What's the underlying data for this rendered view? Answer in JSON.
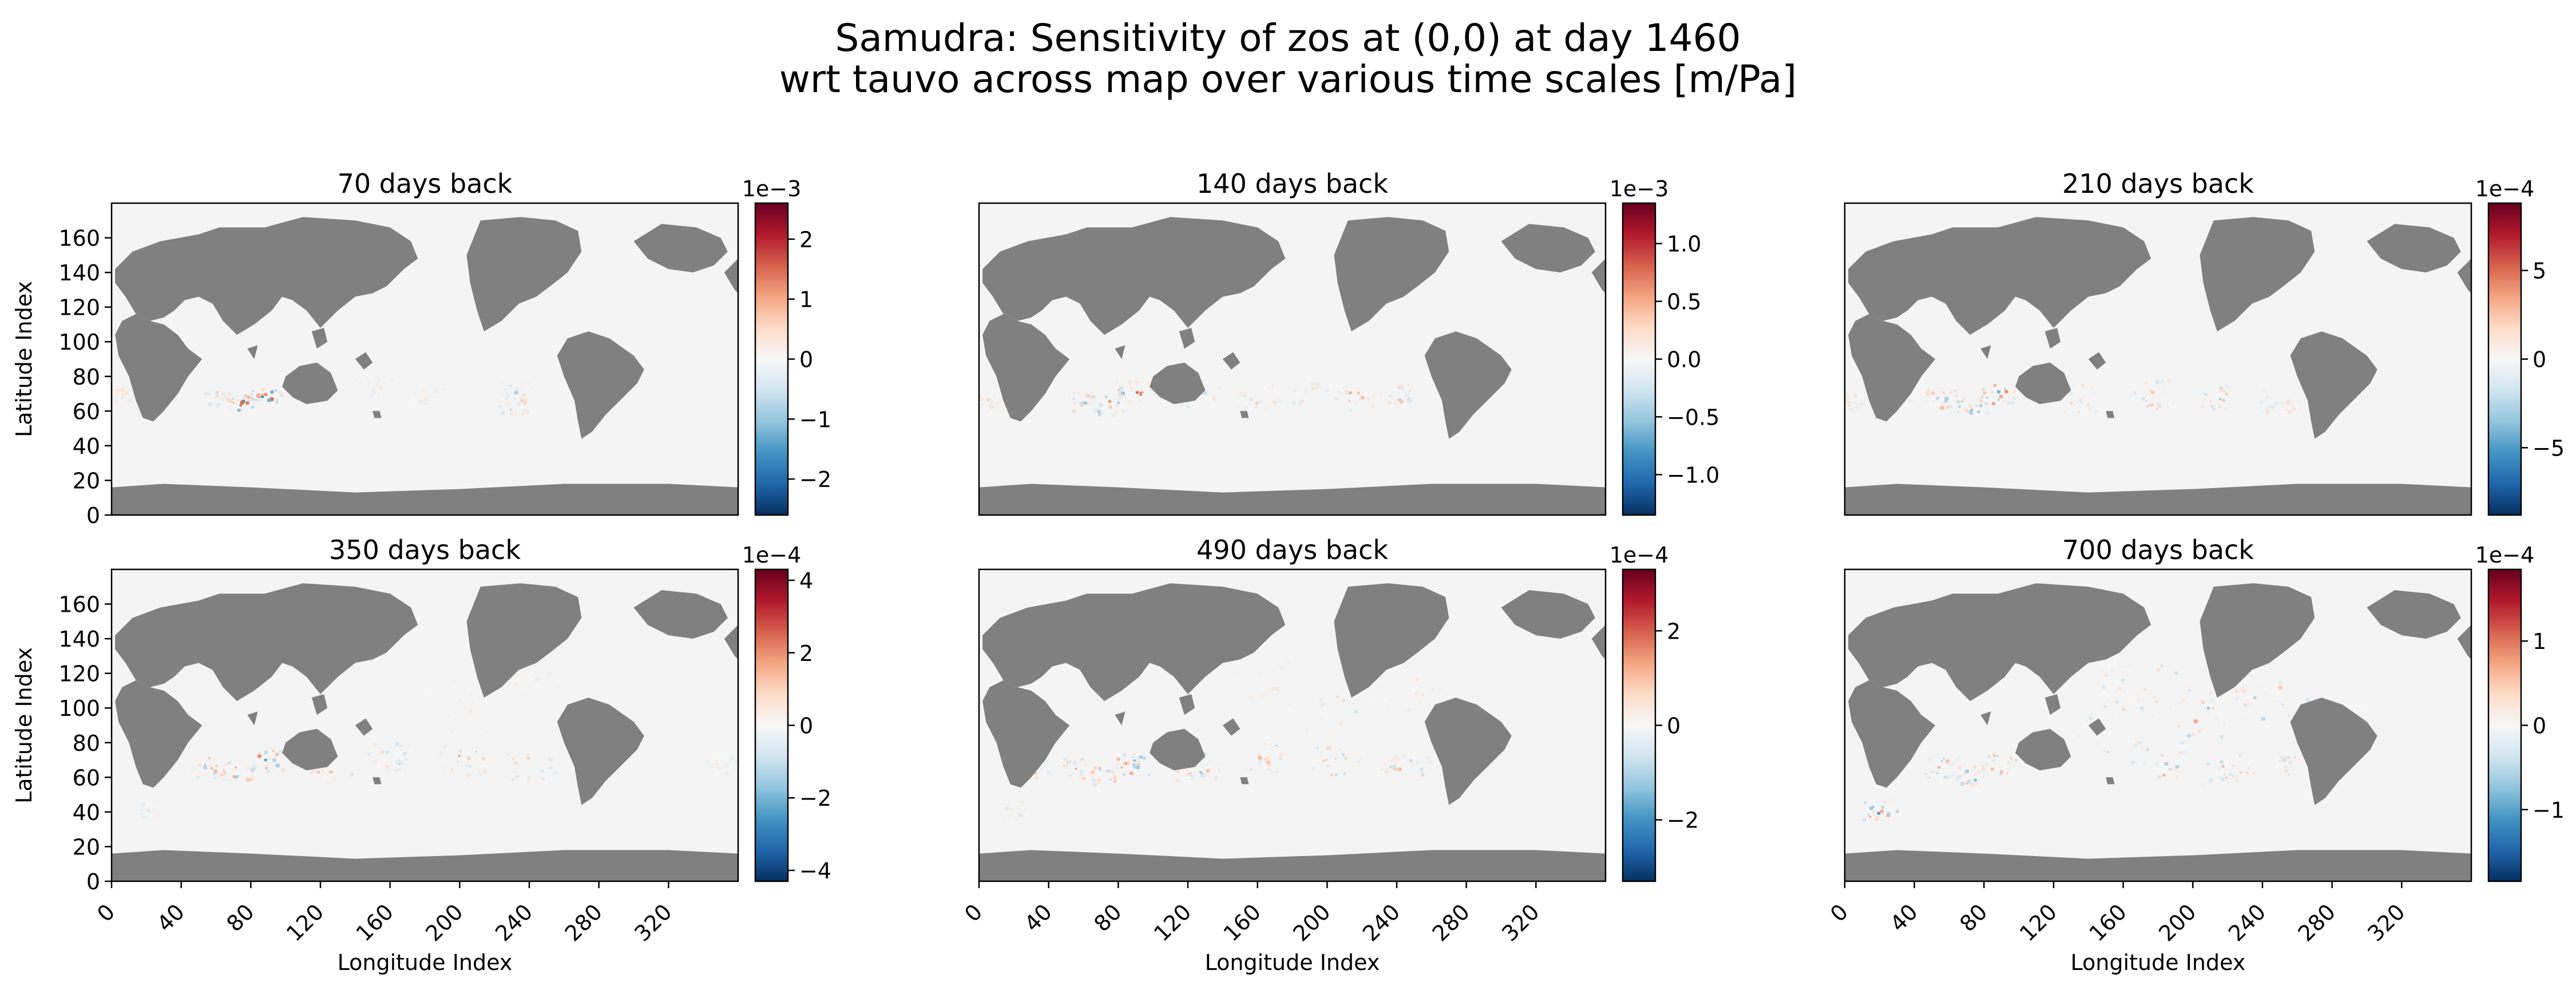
{
  "figure": {
    "title_line1": "Samudra: Sensitivity of zos at (0,0) at day 1460",
    "title_line2": "wrt tauvo across map over various time scales [m/Pa]"
  },
  "colors": {
    "land": "#808080",
    "ocean": "#f4f4f4",
    "colormap": "RdBu_r",
    "colormap_stops": [
      "#053061",
      "#2166ac",
      "#4393c3",
      "#92c5de",
      "#d1e5f0",
      "#f7f7f7",
      "#fddbc7",
      "#f4a582",
      "#d6604d",
      "#b2182b",
      "#67001f"
    ]
  },
  "chart_data": [
    {
      "type": "heatmap",
      "title": "70 days back",
      "xlabel": "",
      "ylabel": "Latitude Index",
      "x_ticks": [],
      "y_ticks": [
        0,
        20,
        40,
        60,
        80,
        100,
        120,
        140,
        160
      ],
      "xlim": [
        0,
        360
      ],
      "ylim": [
        0,
        180
      ],
      "colorbar": {
        "multiplier": "1e−3",
        "range": [
          -2.6,
          2.6
        ],
        "ticks": [
          "−2",
          "−1",
          "0",
          "1",
          "2"
        ],
        "tick_values": [
          -2,
          -1,
          0,
          1,
          2
        ]
      },
      "hotspots": [
        [
          88,
          70,
          2.0,
          9
        ],
        [
          75,
          65,
          -1.8,
          8
        ],
        [
          60,
          68,
          1.2,
          7
        ],
        [
          230,
          65,
          1.0,
          10
        ],
        [
          232,
          72,
          -0.9,
          9
        ],
        [
          5,
          70,
          0.7,
          6
        ],
        [
          180,
          70,
          0.5,
          10
        ],
        [
          150,
          75,
          -0.4,
          12
        ]
      ]
    },
    {
      "type": "heatmap",
      "title": "140 days back",
      "xlabel": "",
      "ylabel": "",
      "x_ticks": [],
      "y_ticks": [],
      "xlim": [
        0,
        360
      ],
      "ylim": [
        0,
        180
      ],
      "colorbar": {
        "multiplier": "1e−3",
        "range": [
          -1.35,
          1.35
        ],
        "ticks": [
          "−1.0",
          "−0.5",
          "0.0",
          "0.5",
          "1.0"
        ],
        "tick_values": [
          -1.0,
          -0.5,
          0.0,
          0.5,
          1.0
        ]
      },
      "hotspots": [
        [
          88,
          72,
          1.0,
          10
        ],
        [
          74,
          64,
          -0.9,
          9
        ],
        [
          60,
          66,
          0.6,
          9
        ],
        [
          125,
          70,
          0.5,
          12
        ],
        [
          160,
          68,
          -0.4,
          12
        ],
        [
          215,
          68,
          0.6,
          12
        ],
        [
          240,
          70,
          -0.5,
          10
        ],
        [
          5,
          66,
          0.4,
          6
        ],
        [
          190,
          70,
          0.4,
          12
        ]
      ]
    },
    {
      "type": "heatmap",
      "title": "210 days back",
      "xlabel": "",
      "ylabel": "",
      "x_ticks": [],
      "y_ticks": [],
      "xlim": [
        0,
        360
      ],
      "ylim": [
        0,
        180
      ],
      "colorbar": {
        "multiplier": "1e−4",
        "range": [
          -8.8,
          8.8
        ],
        "ticks": [
          "−5",
          "0",
          "5"
        ],
        "tick_values": [
          -5,
          0,
          5
        ]
      },
      "hotspots": [
        [
          88,
          70,
          6.0,
          10
        ],
        [
          72,
          64,
          -5.0,
          9
        ],
        [
          55,
          68,
          4.0,
          10
        ],
        [
          130,
          68,
          3.0,
          14
        ],
        [
          175,
          70,
          -3.0,
          14
        ],
        [
          215,
          68,
          3.5,
          12
        ],
        [
          250,
          66,
          -2.5,
          12
        ],
        [
          5,
          66,
          2.0,
          8
        ],
        [
          30,
          70,
          -1.5,
          10
        ]
      ]
    },
    {
      "type": "heatmap",
      "title": "350 days back",
      "xlabel": "Longitude Index",
      "ylabel": "Latitude Index",
      "x_ticks": [
        0,
        40,
        80,
        120,
        160,
        200,
        240,
        280,
        320
      ],
      "y_ticks": [
        0,
        20,
        40,
        60,
        80,
        100,
        120,
        140,
        160
      ],
      "xlim": [
        0,
        360
      ],
      "ylim": [
        0,
        180
      ],
      "colorbar": {
        "multiplier": "1e−4",
        "range": [
          -4.3,
          4.3
        ],
        "ticks": [
          "−4",
          "−2",
          "0",
          "2",
          "4"
        ],
        "tick_values": [
          -4,
          -2,
          0,
          2,
          4
        ]
      },
      "hotspots": [
        [
          88,
          70,
          3.0,
          10
        ],
        [
          72,
          64,
          -2.5,
          9
        ],
        [
          55,
          66,
          2.0,
          10
        ],
        [
          125,
          66,
          1.8,
          14
        ],
        [
          160,
          72,
          -1.5,
          14
        ],
        [
          200,
          70,
          2.0,
          14
        ],
        [
          240,
          66,
          -1.6,
          14
        ],
        [
          30,
          68,
          1.2,
          10
        ],
        [
          350,
          68,
          1.0,
          10
        ],
        [
          20,
          42,
          -1.0,
          8
        ],
        [
          200,
          100,
          0.6,
          24
        ],
        [
          240,
          120,
          -0.5,
          20
        ]
      ]
    },
    {
      "type": "heatmap",
      "title": "490 days back",
      "xlabel": "Longitude Index",
      "ylabel": "",
      "x_ticks": [
        0,
        40,
        80,
        120,
        160,
        200,
        240,
        280,
        320
      ],
      "y_ticks": [],
      "xlim": [
        0,
        360
      ],
      "ylim": [
        0,
        180
      ],
      "colorbar": {
        "multiplier": "1e−4",
        "range": [
          -3.3,
          3.3
        ],
        "ticks": [
          "−2",
          "0",
          "2"
        ],
        "tick_values": [
          -2,
          0,
          2
        ]
      },
      "hotspots": [
        [
          88,
          68,
          2.5,
          10
        ],
        [
          72,
          62,
          -2.0,
          9
        ],
        [
          55,
          66,
          1.6,
          10
        ],
        [
          125,
          66,
          1.5,
          14
        ],
        [
          165,
          72,
          -1.4,
          14
        ],
        [
          205,
          70,
          1.6,
          14
        ],
        [
          245,
          66,
          -1.3,
          14
        ],
        [
          30,
          66,
          1.0,
          10
        ],
        [
          20,
          42,
          -0.9,
          8
        ],
        [
          210,
          100,
          0.7,
          28
        ],
        [
          250,
          110,
          -0.6,
          22
        ],
        [
          170,
          115,
          0.5,
          24
        ]
      ]
    },
    {
      "type": "heatmap",
      "title": "700 days back",
      "xlabel": "Longitude Index",
      "ylabel": "",
      "x_ticks": [
        0,
        40,
        80,
        120,
        160,
        200,
        240,
        280,
        320
      ],
      "y_ticks": [],
      "xlim": [
        0,
        360
      ],
      "ylim": [
        0,
        180
      ],
      "colorbar": {
        "multiplier": "1e−4",
        "range": [
          -1.85,
          1.85
        ],
        "ticks": [
          "−1",
          "0",
          "1"
        ],
        "tick_values": [
          -1,
          0,
          1
        ]
      },
      "hotspots": [
        [
          88,
          68,
          1.2,
          10
        ],
        [
          72,
          62,
          -1.0,
          9
        ],
        [
          55,
          66,
          0.8,
          10
        ],
        [
          20,
          42,
          -1.4,
          10
        ],
        [
          180,
          70,
          0.9,
          16
        ],
        [
          220,
          66,
          -0.8,
          16
        ],
        [
          260,
          68,
          0.7,
          14
        ],
        [
          200,
          95,
          0.9,
          30
        ],
        [
          240,
          105,
          -0.8,
          26
        ],
        [
          170,
          110,
          0.7,
          26
        ],
        [
          150,
          90,
          -0.6,
          26
        ],
        [
          280,
          90,
          0.6,
          20
        ]
      ]
    }
  ]
}
